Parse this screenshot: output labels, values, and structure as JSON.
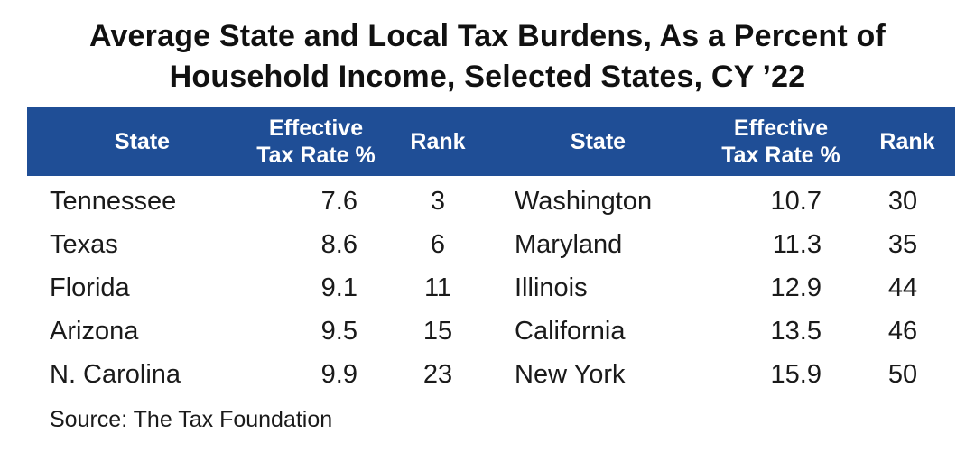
{
  "title": {
    "line1": "Average State and Local Tax Burdens, As a Percent of",
    "line2": "Household Income, Selected States, CY ’22"
  },
  "headers": {
    "state": "State",
    "rate_line1": "Effective",
    "rate_line2": "Tax Rate %",
    "rank": "Rank"
  },
  "colors": {
    "header_background": "#1f4e96",
    "header_text": "#ffffff"
  },
  "table": {
    "left": [
      {
        "state": "Tennessee",
        "rate": "7.6",
        "rank": "3"
      },
      {
        "state": "Texas",
        "rate": "8.6",
        "rank": "6"
      },
      {
        "state": "Florida",
        "rate": "9.1",
        "rank": "11"
      },
      {
        "state": "Arizona",
        "rate": "9.5",
        "rank": "15"
      },
      {
        "state": "N. Carolina",
        "rate": "9.9",
        "rank": "23"
      }
    ],
    "right": [
      {
        "state": "Washington",
        "rate": "10.7",
        "rank": "30"
      },
      {
        "state": "Maryland",
        "rate": "11.3",
        "rank": "35"
      },
      {
        "state": "Illinois",
        "rate": "12.9",
        "rank": "44"
      },
      {
        "state": "California",
        "rate": "13.5",
        "rank": "46"
      },
      {
        "state": "New York",
        "rate": "15.9",
        "rank": "50"
      }
    ]
  },
  "source": "Source: The Tax Foundation"
}
